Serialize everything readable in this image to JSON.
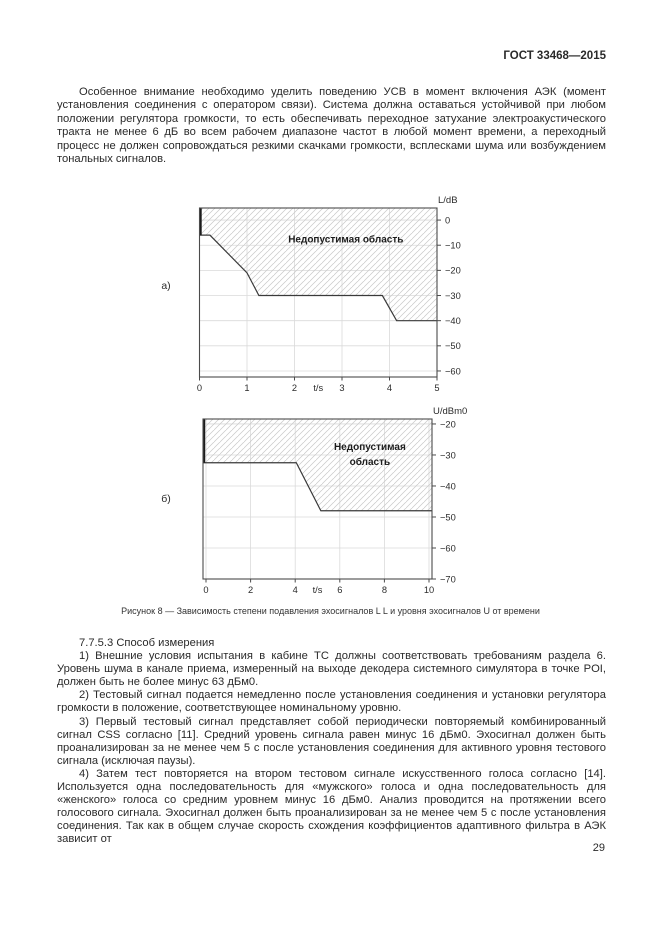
{
  "page": {
    "header": "ГОСТ 33468—2015",
    "page_number": "29",
    "intro_paragraph": "Особенное внимание необходимо уделить поведению УСВ в момент включения АЭК (момент установления соединения с оператором связи). Система должна оставаться устойчивой при любом положении регулятора громкости, то есть обеспечивать переходное затухание электроакустического тракта не менее 6 дБ во всем рабочем диапазоне частот в любой момент времени, а переходный процесс не должен сопровождаться резкими скачками громкости, всплесками шума или возбуждением тональных сигналов.",
    "figure_caption": "Рисунок 8 — Зависимость степени подавления эхосигналов L L и уровня эхосигналов U от времени",
    "section": {
      "heading": "7.7.5.3 Способ измерения",
      "paragraphs": [
        "1) Внешние условия испытания в кабине ТС должны соответствовать требованиям раздела 6. Уровень шума в канале приема, измеренный на выходе декодера системного симулятора в точке POI, должен быть не более минус 63 дБм0.",
        "2) Тестовый сигнал подается немедленно после установления соединения и установки регулятора громкости в положение, соответствующее номинальному уровню.",
        "3) Первый тестовый сигнал представляет собой периодически повторяемый комбинированный сигнал CSS согласно [11]. Средний уровень сигнала равен минус 16 дБм0. Эхосигнал должен быть проанализирован за не менее чем 5 с после установления соединения для активного уровня тестового сигнала (исключая паузы).",
        "4) Затем тест повторяется на втором тестовом сигнале искусственного голоса согласно [14]. Используется одна последовательность для «мужского» голоса и одна последовательность для «женского» голоса со средним уровнем минус 16 дБм0. Анализ проводится на протяжении всего голосового сигнала. Эхосигнал должен быть проанализирован за не менее чем 5 с после установления соединения. Так как в общем случае скорость схождения коэффициентов адаптивного фильтра в АЭК зависит от"
      ]
    }
  },
  "chart_data": [
    {
      "id": "chart-a",
      "type": "line",
      "panel_label": "а)",
      "ylabel": "L/dB",
      "xlabel": "t/s",
      "xlabel_at_x": 2.5,
      "xlim": [
        0,
        5
      ],
      "ylim": [
        -62.4,
        4.8
      ],
      "x_ticks": [
        0,
        1,
        2,
        3,
        4,
        5
      ],
      "y_ticks": [
        0,
        -10,
        -20,
        -30,
        -40,
        -50,
        -60
      ],
      "curve_points": [
        [
          0,
          -6
        ],
        [
          0.22,
          -6
        ],
        [
          1.0,
          -21
        ],
        [
          1.25,
          -30
        ],
        [
          3.85,
          -30
        ],
        [
          4.15,
          -40
        ],
        [
          5,
          -40
        ]
      ],
      "region": "above-curve",
      "region_label_lines": [
        "Недопустимая область"
      ],
      "region_label_pos": [
        3.08,
        -8.9
      ],
      "grid": true,
      "legend": "none",
      "hatch_color": "#c9c9c9",
      "curve_color": "#3a3a3a"
    },
    {
      "id": "chart-b",
      "type": "line",
      "panel_label": "б)",
      "ylabel": "U/dBm0",
      "xlabel": "t/s",
      "xlabel_at_x": 5,
      "xlim": [
        0,
        10
      ],
      "ylim": [
        -70,
        -18.4
      ],
      "x_ticks": [
        0,
        2,
        4,
        6,
        8,
        10
      ],
      "y_ticks": [
        -20,
        -30,
        -40,
        -50,
        -60,
        -70
      ],
      "curve_points": [
        [
          0,
          -32.5
        ],
        [
          4.05,
          -32.5
        ],
        [
          5.15,
          -48
        ],
        [
          10,
          -48
        ]
      ],
      "region": "above-curve",
      "region_label_lines": [
        "Недопустимая",
        "область"
      ],
      "region_label_pos": [
        7.35,
        -28.4
      ],
      "grid": true,
      "legend": "none",
      "hatch_color": "#c9c9c9",
      "curve_color": "#3a3a3a"
    }
  ]
}
